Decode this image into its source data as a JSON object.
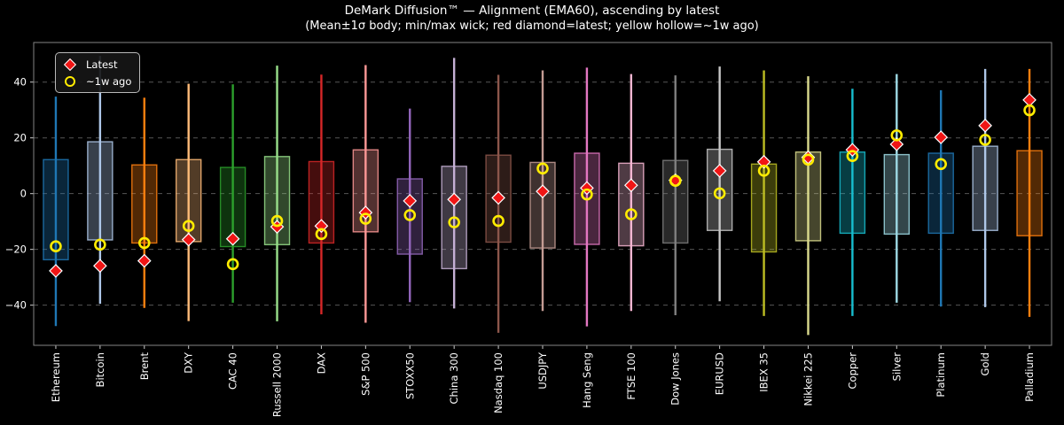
{
  "header": {
    "title": "DeMark Diffusion™ — Alignment (EMA60), ascending by latest",
    "subtitle": "(Mean±1σ body; min/max wick; red diamond=latest; yellow hollow=~1w ago)"
  },
  "legend": {
    "latest_label": "Latest",
    "week_ago_label": "~1w ago",
    "latest_color": "#f01515",
    "week_ago_color": "#ffec00"
  },
  "colors": {
    "background": "#000000",
    "text": "#ffffff",
    "axis_border": "#848484",
    "gridline": "#565656",
    "tick": "#cccccc",
    "diamond_fill": "#f01515",
    "diamond_edge": "#ffffff",
    "circle_stroke": "#ffec00"
  },
  "chart_data": {
    "type": "candlestick-range",
    "title": "DeMark Diffusion™ — Alignment (EMA60), ascending by latest",
    "subtitle": "(Mean±1σ body; min/max wick; red diamond=latest; yellow hollow=~1w ago)",
    "ylim": [
      -54.4,
      54.2
    ],
    "yticks": [
      -40,
      -20,
      0,
      20,
      40
    ],
    "grid": "dashed-horizontal",
    "legend_position": "upper-left",
    "series": [
      {
        "name": "Ethereum",
        "color": "#1f77b4",
        "wick_min": -47.5,
        "wick_max": 34.8,
        "body_low": -23.7,
        "body_high": 12.2,
        "latest": -27.7,
        "week_ago": -18.9
      },
      {
        "name": "Bitcoin",
        "color": "#aec7e8",
        "wick_min": -39.5,
        "wick_max": 49.4,
        "body_low": -16.6,
        "body_high": 18.6,
        "latest": -25.9,
        "week_ago": -18.3
      },
      {
        "name": "Brent",
        "color": "#ff7f0e",
        "wick_min": -41.0,
        "wick_max": 34.4,
        "body_low": -17.7,
        "body_high": 10.3,
        "latest": -24.1,
        "week_ago": -17.7
      },
      {
        "name": "DXY",
        "color": "#ffbb78",
        "wick_min": -45.7,
        "wick_max": 39.4,
        "body_low": -17.2,
        "body_high": 12.2,
        "latest": -16.5,
        "week_ago": -11.6
      },
      {
        "name": "CAC 40",
        "color": "#2ca02c",
        "wick_min": -39.1,
        "wick_max": 39.2,
        "body_low": -19.0,
        "body_high": 9.4,
        "latest": -16.2,
        "week_ago": -25.3
      },
      {
        "name": "Russell 2000",
        "color": "#98df8a",
        "wick_min": -45.8,
        "wick_max": 45.9,
        "body_low": -18.3,
        "body_high": 13.3,
        "latest": -11.9,
        "week_ago": -9.8
      },
      {
        "name": "DAX",
        "color": "#d62728",
        "wick_min": -43.3,
        "wick_max": 42.7,
        "body_low": -17.7,
        "body_high": 11.5,
        "latest": -11.6,
        "week_ago": -14.5
      },
      {
        "name": "S&P 500",
        "color": "#ff9896",
        "wick_min": -46.3,
        "wick_max": 46.1,
        "body_low": -13.7,
        "body_high": 15.7,
        "latest": -6.8,
        "week_ago": -9.0
      },
      {
        "name": "STOXX50",
        "color": "#9467bd",
        "wick_min": -38.9,
        "wick_max": 30.5,
        "body_low": -21.7,
        "body_high": 5.3,
        "latest": -2.6,
        "week_ago": -7.7
      },
      {
        "name": "China 300",
        "color": "#c5b0d5",
        "wick_min": -41.2,
        "wick_max": 48.7,
        "body_low": -26.9,
        "body_high": 9.8,
        "latest": -2.1,
        "week_ago": -10.3
      },
      {
        "name": "Nasdaq 100",
        "color": "#8c564b",
        "wick_min": -49.9,
        "wick_max": 42.6,
        "body_low": -17.4,
        "body_high": 13.8,
        "latest": -1.5,
        "week_ago": -9.8
      },
      {
        "name": "USDJPY",
        "color": "#c49c94",
        "wick_min": -42.1,
        "wick_max": 44.2,
        "body_low": -19.5,
        "body_high": 11.2,
        "latest": 0.8,
        "week_ago": 9.0
      },
      {
        "name": "Hang Seng",
        "color": "#e377c2",
        "wick_min": -47.6,
        "wick_max": 45.2,
        "body_low": -18.2,
        "body_high": 14.5,
        "latest": 2.0,
        "week_ago": -0.3
      },
      {
        "name": "FTSE 100",
        "color": "#f7b6d2",
        "wick_min": -42.1,
        "wick_max": 42.9,
        "body_low": -18.7,
        "body_high": 10.9,
        "latest": 3.0,
        "week_ago": -7.4
      },
      {
        "name": "Dow Jones",
        "color": "#7f7f7f",
        "wick_min": -43.6,
        "wick_max": 42.4,
        "body_low": -17.7,
        "body_high": 11.9,
        "latest": 4.8,
        "week_ago": 4.6
      },
      {
        "name": "EURUSD",
        "color": "#c7c7c7",
        "wick_min": -38.6,
        "wick_max": 45.6,
        "body_low": -13.2,
        "body_high": 15.9,
        "latest": 8.2,
        "week_ago": 0.1
      },
      {
        "name": "IBEX 35",
        "color": "#bcbd22",
        "wick_min": -43.9,
        "wick_max": 44.2,
        "body_low": -20.9,
        "body_high": 10.6,
        "latest": 11.4,
        "week_ago": 8.2
      },
      {
        "name": "Nikkei 225",
        "color": "#dbdb8d",
        "wick_min": -50.7,
        "wick_max": 42.1,
        "body_low": -16.9,
        "body_high": 14.9,
        "latest": 13.0,
        "week_ago": 12.2
      },
      {
        "name": "Copper",
        "color": "#17becf",
        "wick_min": -43.9,
        "wick_max": 37.6,
        "body_low": -14.2,
        "body_high": 14.9,
        "latest": 15.7,
        "week_ago": 13.5
      },
      {
        "name": "Silver",
        "color": "#9edae5",
        "wick_min": -39.1,
        "wick_max": 42.9,
        "body_low": -14.5,
        "body_high": 14.0,
        "latest": 17.7,
        "week_ago": 20.9
      },
      {
        "name": "Platinum",
        "color": "#1f77b4",
        "wick_min": -40.5,
        "wick_max": 37.1,
        "body_low": -14.2,
        "body_high": 14.5,
        "latest": 20.2,
        "week_ago": 10.6
      },
      {
        "name": "Gold",
        "color": "#aec7e8",
        "wick_min": -40.7,
        "wick_max": 44.7,
        "body_low": -13.2,
        "body_high": 17.0,
        "latest": 24.4,
        "week_ago": 19.3
      },
      {
        "name": "Palladium",
        "color": "#ff7f0e",
        "wick_min": -44.2,
        "wick_max": 44.7,
        "body_low": -15.1,
        "body_high": 15.4,
        "latest": 33.6,
        "week_ago": 29.9
      }
    ]
  }
}
